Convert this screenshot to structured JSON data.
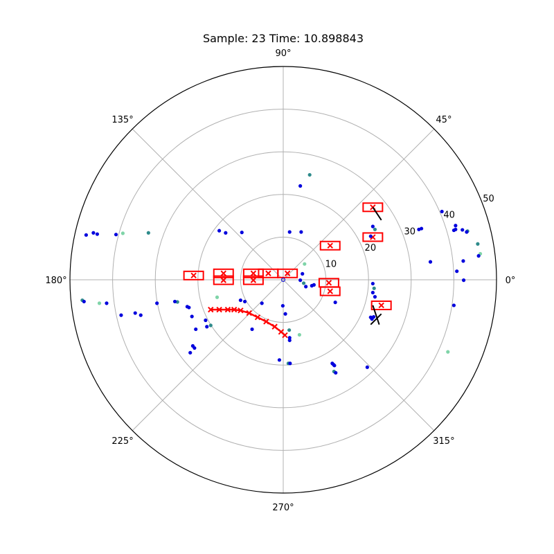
{
  "chart_data": {
    "type": "scatter",
    "projection": "polar",
    "title": "Sample: 23 Time: 10.898843",
    "theta_ticks": [
      {
        "deg": 0,
        "label": "0°"
      },
      {
        "deg": 45,
        "label": "45°"
      },
      {
        "deg": 90,
        "label": "90°"
      },
      {
        "deg": 135,
        "label": "135°"
      },
      {
        "deg": 180,
        "label": "180°"
      },
      {
        "deg": 225,
        "label": "225°"
      },
      {
        "deg": 270,
        "label": "270°"
      },
      {
        "deg": 315,
        "label": "315°"
      }
    ],
    "r_ticks": [
      {
        "value": 10,
        "label": "10"
      },
      {
        "value": 20,
        "label": "20"
      },
      {
        "value": 30,
        "label": "30"
      },
      {
        "value": 40,
        "label": "40"
      },
      {
        "value": 50,
        "label": "50"
      }
    ],
    "rlim": [
      0,
      50
    ],
    "grid": true,
    "colors": {
      "points": "#0000dd",
      "points_alt": "#2e8b8b",
      "points_light": "#7fd4a8",
      "boxes": "#ff0000",
      "tracks": "#000000",
      "grid": "#b0b0b0"
    },
    "points": [
      {
        "x": 6.2,
        "y": 24.6
      },
      {
        "x": 4.0,
        "y": 22.0
      },
      {
        "x": 4.2,
        "y": 11.2
      },
      {
        "x": 1.5,
        "y": 11.2
      },
      {
        "x": -9.7,
        "y": 11.1
      },
      {
        "x": -15.0,
        "y": 11.5
      },
      {
        "x": -13.5,
        "y": 11.0
      },
      {
        "x": -31.6,
        "y": 11.0
      },
      {
        "x": -44.5,
        "y": 11.0
      },
      {
        "x": -43.6,
        "y": 10.7
      },
      {
        "x": -39.2,
        "y": 10.6
      },
      {
        "x": -37.6,
        "y": 10.9
      },
      {
        "x": -46.2,
        "y": 10.5
      },
      {
        "x": 21.0,
        "y": 12.5
      },
      {
        "x": 21.5,
        "y": 11.8
      },
      {
        "x": 31.8,
        "y": 11.8
      },
      {
        "x": 32.4,
        "y": 12.0
      },
      {
        "x": 40.4,
        "y": 11.8
      },
      {
        "x": 40.0,
        "y": 11.6
      },
      {
        "x": 20.5,
        "y": 10.2
      },
      {
        "x": 37.2,
        "y": 16.0
      },
      {
        "x": 45.6,
        "y": 8.4
      },
      {
        "x": 46.2,
        "y": 6.1
      },
      {
        "x": 45.8,
        "y": 5.6
      },
      {
        "x": 42.2,
        "y": 4.4
      },
      {
        "x": 50.9,
        "y": -1.0
      },
      {
        "x": 42.3,
        "y": -0.1
      },
      {
        "x": 21.0,
        "y": -0.9
      },
      {
        "x": 21.3,
        "y": -2.0
      },
      {
        "x": 21.0,
        "y": -3.0
      },
      {
        "x": 12.2,
        "y": -5.3
      },
      {
        "x": 21.5,
        "y": -4.0
      },
      {
        "x": 6.7,
        "y": -1.4
      },
      {
        "x": 5.0,
        "y": 3.7
      },
      {
        "x": 4.5,
        "y": 1.4
      },
      {
        "x": 4.8,
        "y": -0.8
      },
      {
        "x": 4.0,
        "y": -0.1
      },
      {
        "x": 5.3,
        "y": -1.6
      },
      {
        "x": 20.5,
        "y": -8.8
      },
      {
        "x": 21.2,
        "y": -8.7
      },
      {
        "x": 20.8,
        "y": -9.2
      },
      {
        "x": 40.0,
        "y": -6.0
      },
      {
        "x": 1.4,
        "y": -11.8
      },
      {
        "x": 1.5,
        "y": -13.6
      },
      {
        "x": 3.8,
        "y": -12.9
      },
      {
        "x": 1.5,
        "y": -14.2
      },
      {
        "x": -0.9,
        "y": -18.8
      },
      {
        "x": 11.8,
        "y": -19.9
      },
      {
        "x": 11.5,
        "y": -19.6
      },
      {
        "x": 11.9,
        "y": -21.5
      },
      {
        "x": 12.3,
        "y": -21.8
      },
      {
        "x": 12.0,
        "y": -20.1
      },
      {
        "x": -5.0,
        "y": -5.5
      },
      {
        "x": -9.0,
        "y": -5.1
      },
      {
        "x": -10.0,
        "y": -4.8
      },
      {
        "x": -15.5,
        "y": -4.1
      },
      {
        "x": -24.8,
        "y": -5.2
      },
      {
        "x": -25.4,
        "y": -5.1
      },
      {
        "x": -22.5,
        "y": -6.3
      },
      {
        "x": -22.1,
        "y": -6.5
      },
      {
        "x": -29.6,
        "y": -5.5
      },
      {
        "x": -34.7,
        "y": -7.8
      },
      {
        "x": -38.0,
        "y": -8.3
      },
      {
        "x": -47.1,
        "y": -4.8
      },
      {
        "x": -46.7,
        "y": -5.1
      },
      {
        "x": -41.4,
        "y": -5.5
      },
      {
        "x": -43.1,
        "y": -5.5
      },
      {
        "x": -33.4,
        "y": -8.3
      },
      {
        "x": -18.2,
        "y": -9.5
      },
      {
        "x": -21.4,
        "y": -8.6
      },
      {
        "x": -17.0,
        "y": -10.7
      },
      {
        "x": -7.3,
        "y": -11.6
      },
      {
        "x": -20.5,
        "y": -11.6
      },
      {
        "x": -17.9,
        "y": -11.0
      },
      {
        "x": -21.2,
        "y": -15.5
      },
      {
        "x": -20.8,
        "y": -16.0
      },
      {
        "x": -21.8,
        "y": -17.1
      },
      {
        "x": 1.2,
        "y": -19.6
      },
      {
        "x": 1.6,
        "y": -19.6
      },
      {
        "x": -0.1,
        "y": -6.1
      },
      {
        "x": 0.5,
        "y": -8.0
      },
      {
        "x": 7.2,
        "y": -1.2
      },
      {
        "x": 19.7,
        "y": -20.5
      },
      {
        "x": 40.7,
        "y": 2.0
      },
      {
        "x": 43.2,
        "y": 11.4
      },
      {
        "x": 43.0,
        "y": 11.2
      },
      {
        "x": 40.4,
        "y": 12.7
      },
      {
        "x": 42.0,
        "y": 11.7
      },
      {
        "x": 38.6,
        "y": -16.9
      },
      {
        "x": 34.5,
        "y": 4.2
      }
    ],
    "boxes": [
      {
        "x": -21.0,
        "y": 1.0
      },
      {
        "x": -14.0,
        "y": 1.5
      },
      {
        "x": -7.0,
        "y": 1.5
      },
      {
        "x": -3.5,
        "y": 1.5
      },
      {
        "x": 1.0,
        "y": 1.5
      },
      {
        "x": -7.0,
        "y": -0.1
      },
      {
        "x": -14.0,
        "y": -0.1
      },
      {
        "x": 11.0,
        "y": 8.0
      },
      {
        "x": 10.7,
        "y": -0.7
      },
      {
        "x": 11.0,
        "y": -2.7
      },
      {
        "x": 21.0,
        "y": 10.0
      },
      {
        "x": 21.0,
        "y": 17.0
      },
      {
        "x": 23.0,
        "y": -6.0
      }
    ],
    "crosses": [
      {
        "x": -17.0,
        "y": -7.0
      },
      {
        "x": -15.0,
        "y": -7.0
      },
      {
        "x": -13.0,
        "y": -7.0
      },
      {
        "x": -11.5,
        "y": -7.0
      },
      {
        "x": -10.0,
        "y": -7.2
      },
      {
        "x": -8.0,
        "y": -7.8
      },
      {
        "x": -6.0,
        "y": -8.8
      },
      {
        "x": -4.0,
        "y": -9.8
      },
      {
        "x": -2.0,
        "y": -11.0
      },
      {
        "x": -0.5,
        "y": -12.2
      },
      {
        "x": 0.4,
        "y": -13.0
      }
    ],
    "tracks": [
      {
        "x": 21.0,
        "y": 17.0,
        "dx": 2.0,
        "dy": -3.0
      },
      {
        "x": 21.0,
        "y": -6.0,
        "dx": 1.5,
        "dy": -4.5
      },
      {
        "x": 23.0,
        "y": -8.0,
        "dx": -2.5,
        "dy": -2.5
      }
    ]
  }
}
